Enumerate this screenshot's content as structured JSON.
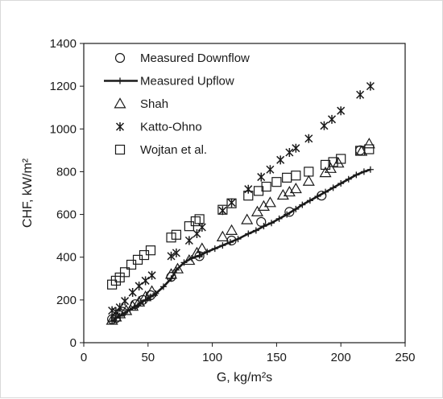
{
  "chart_data": {
    "type": "scatter",
    "xlabel": "G, kg/m²s",
    "ylabel": "CHF, kW/m²",
    "xlim": [
      0,
      250
    ],
    "ylim": [
      0,
      1400
    ],
    "x_ticks": [
      0,
      50,
      100,
      150,
      200,
      250
    ],
    "y_ticks": [
      0,
      200,
      400,
      600,
      800,
      1000,
      1200,
      1400
    ],
    "x_tick_labels": [
      "0",
      "50",
      "100",
      "150",
      "200",
      "250"
    ],
    "y_tick_labels": [
      "0",
      "200",
      "400",
      "600",
      "800",
      "1000",
      "1200",
      "1400"
    ],
    "grid": false,
    "legend_position": "top-left",
    "series": [
      {
        "name": "Measured Downflow",
        "marker": "circle",
        "points": [
          [
            22,
            110
          ],
          [
            25,
            115
          ],
          [
            30,
            145
          ],
          [
            40,
            180
          ],
          [
            46,
            200
          ],
          [
            52,
            222
          ],
          [
            68,
            308
          ],
          [
            90,
            405
          ],
          [
            115,
            478
          ],
          [
            138,
            565
          ],
          [
            160,
            612
          ],
          [
            185,
            688
          ],
          [
            215,
            900
          ]
        ]
      },
      {
        "name": "Measured Upflow",
        "marker": "plus-line",
        "points": [
          [
            22,
            100
          ],
          [
            25,
            115
          ],
          [
            28,
            125
          ],
          [
            32,
            140
          ],
          [
            36,
            155
          ],
          [
            40,
            168
          ],
          [
            44,
            185
          ],
          [
            48,
            200
          ],
          [
            52,
            215
          ],
          [
            56,
            230
          ],
          [
            62,
            262
          ],
          [
            68,
            300
          ],
          [
            72,
            340
          ],
          [
            78,
            375
          ],
          [
            84,
            395
          ],
          [
            90,
            408
          ],
          [
            96,
            425
          ],
          [
            102,
            440
          ],
          [
            108,
            455
          ],
          [
            114,
            470
          ],
          [
            120,
            485
          ],
          [
            128,
            510
          ],
          [
            134,
            525
          ],
          [
            140,
            545
          ],
          [
            146,
            560
          ],
          [
            152,
            580
          ],
          [
            158,
            600
          ],
          [
            165,
            625
          ],
          [
            170,
            645
          ],
          [
            176,
            665
          ],
          [
            182,
            685
          ],
          [
            188,
            705
          ],
          [
            194,
            725
          ],
          [
            200,
            745
          ],
          [
            206,
            765
          ],
          [
            212,
            785
          ],
          [
            218,
            800
          ],
          [
            223,
            810
          ]
        ]
      },
      {
        "name": "Shah",
        "marker": "triangle",
        "points": [
          [
            22,
            105
          ],
          [
            25,
            120
          ],
          [
            28,
            135
          ],
          [
            33,
            150
          ],
          [
            38,
            170
          ],
          [
            43,
            190
          ],
          [
            48,
            215
          ],
          [
            53,
            240
          ],
          [
            68,
            320
          ],
          [
            73,
            345
          ],
          [
            82,
            385
          ],
          [
            88,
            420
          ],
          [
            92,
            440
          ],
          [
            108,
            495
          ],
          [
            115,
            525
          ],
          [
            127,
            575
          ],
          [
            135,
            612
          ],
          [
            140,
            638
          ],
          [
            145,
            655
          ],
          [
            155,
            690
          ],
          [
            160,
            705
          ],
          [
            165,
            720
          ],
          [
            175,
            755
          ],
          [
            188,
            795
          ],
          [
            192,
            815
          ],
          [
            198,
            840
          ],
          [
            216,
            895
          ],
          [
            222,
            930
          ]
        ]
      },
      {
        "name": "Katto-Ohno",
        "marker": "asterisk",
        "points": [
          [
            22,
            150
          ],
          [
            25,
            145
          ],
          [
            28,
            165
          ],
          [
            32,
            195
          ],
          [
            38,
            235
          ],
          [
            43,
            265
          ],
          [
            48,
            290
          ],
          [
            53,
            315
          ],
          [
            68,
            405
          ],
          [
            72,
            420
          ],
          [
            82,
            478
          ],
          [
            88,
            510
          ],
          [
            92,
            540
          ],
          [
            108,
            618
          ],
          [
            115,
            655
          ],
          [
            128,
            718
          ],
          [
            138,
            775
          ],
          [
            145,
            810
          ],
          [
            153,
            855
          ],
          [
            160,
            890
          ],
          [
            165,
            910
          ],
          [
            175,
            955
          ],
          [
            187,
            1015
          ],
          [
            193,
            1045
          ],
          [
            200,
            1085
          ],
          [
            215,
            1160
          ],
          [
            223,
            1200
          ]
        ]
      },
      {
        "name": "Wojtan et al.",
        "marker": "square",
        "points": [
          [
            22,
            272
          ],
          [
            25,
            290
          ],
          [
            28,
            305
          ],
          [
            32,
            330
          ],
          [
            37,
            365
          ],
          [
            42,
            388
          ],
          [
            47,
            410
          ],
          [
            52,
            432
          ],
          [
            68,
            492
          ],
          [
            72,
            505
          ],
          [
            82,
            545
          ],
          [
            87,
            568
          ],
          [
            90,
            578
          ],
          [
            108,
            622
          ],
          [
            115,
            652
          ],
          [
            128,
            688
          ],
          [
            136,
            710
          ],
          [
            142,
            730
          ],
          [
            150,
            752
          ],
          [
            158,
            772
          ],
          [
            165,
            782
          ],
          [
            175,
            800
          ],
          [
            188,
            832
          ],
          [
            194,
            845
          ],
          [
            200,
            860
          ],
          [
            215,
            898
          ],
          [
            222,
            905
          ]
        ]
      }
    ]
  }
}
